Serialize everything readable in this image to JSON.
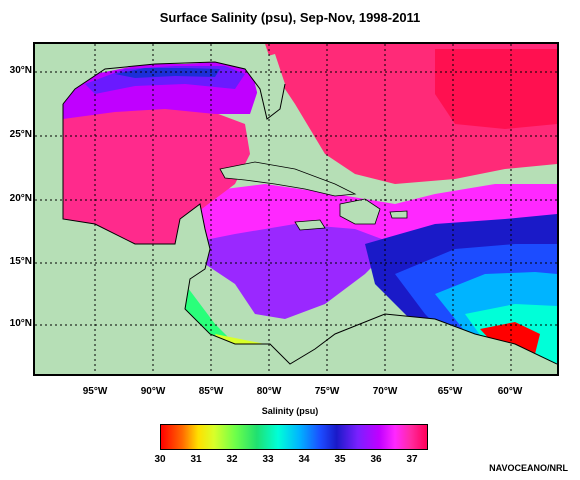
{
  "title": "Surface Salinity (psu), Sep-Nov, 1998-2011",
  "map": {
    "lat_labels": [
      "30°N",
      "25°N",
      "20°N",
      "15°N",
      "10°N"
    ],
    "lon_labels": [
      "95°W",
      "90°W",
      "85°W",
      "80°W",
      "75°W",
      "70°W",
      "65°W",
      "60°W"
    ],
    "land_color": "#b6dfb6",
    "grid": "dotted"
  },
  "colorbar": {
    "title": "Salinity (psu)",
    "ticks": [
      "30",
      "31",
      "32",
      "33",
      "34",
      "35",
      "36",
      "37"
    ],
    "min": 30,
    "max": 37.5
  },
  "credit": "NAVOCEANO/NRL"
}
